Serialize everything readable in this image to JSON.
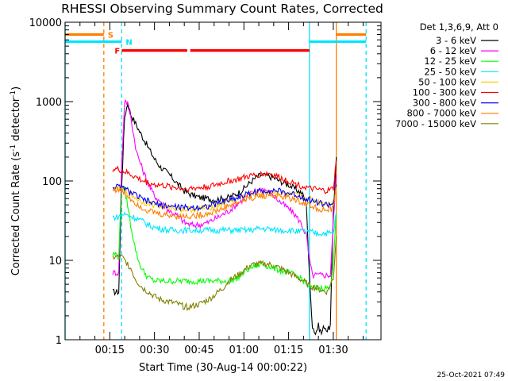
{
  "chart_data": {
    "type": "line",
    "title": "RHESSI Observing Summary Count Rates, Corrected",
    "xlabel": "Start Time (30-Aug-14 00:00:22)",
    "ylabel_main": "Corrected Count Rate (s",
    "ylabel_sup1": "-1",
    "ylabel_mid": " detector",
    "ylabel_sup2": "-1",
    "ylabel_end": ")",
    "timestamp": "25-Oct-2021 07:49",
    "legend_title": "Det 1,3,6,9, Att 0",
    "legend_position": "right",
    "y_scale": "log",
    "ylim": [
      1,
      10000
    ],
    "xlim_minutes": [
      0,
      106
    ],
    "yticks": [
      {
        "value": 1,
        "label": "1"
      },
      {
        "value": 10,
        "label": "10"
      },
      {
        "value": 100,
        "label": "100"
      },
      {
        "value": 1000,
        "label": "1000"
      },
      {
        "value": 10000,
        "label": "10000"
      }
    ],
    "xticks": [
      {
        "value": 15,
        "label": "00:15"
      },
      {
        "value": 30,
        "label": "00:30"
      },
      {
        "value": 45,
        "label": "00:45"
      },
      {
        "value": 60,
        "label": "01:00"
      },
      {
        "value": 75,
        "label": "01:15"
      },
      {
        "value": 90,
        "label": "01:30"
      }
    ],
    "flags": [
      {
        "label": "S",
        "color": "#ff7f00",
        "y": 7000,
        "segments": [
          [
            0,
            13
          ],
          [
            91,
            101
          ]
        ]
      },
      {
        "label": "N",
        "color": "#00e5ff",
        "y": 5700,
        "segments": [
          [
            0,
            19
          ],
          [
            82,
            101
          ]
        ]
      },
      {
        "label": "F",
        "color": "#ff0000",
        "y": 4400,
        "segments": [
          [
            19,
            41
          ],
          [
            42,
            82
          ]
        ]
      }
    ],
    "vlines": [
      {
        "x": 0,
        "color": "#00e5ff",
        "style": "solid"
      },
      {
        "x": 13,
        "color": "#ff7f00",
        "style": "dashed"
      },
      {
        "x": 19,
        "color": "#00e5ff",
        "style": "dashed"
      },
      {
        "x": 82,
        "color": "#00e5ff",
        "style": "solid"
      },
      {
        "x": 91,
        "color": "#ff7f00",
        "style": "solid"
      },
      {
        "x": 101,
        "color": "#00e5ff",
        "style": "dashed"
      }
    ],
    "series": [
      {
        "name": "3 - 6 keV",
        "color": "#000000",
        "x": [
          16,
          17,
          18,
          19,
          20,
          21,
          22,
          25,
          28,
          30,
          32,
          35,
          38,
          40,
          42,
          45,
          48,
          50,
          53,
          55,
          58,
          60,
          62,
          64,
          66,
          68,
          70,
          72,
          75,
          77,
          79,
          80,
          81,
          82,
          83,
          84,
          85,
          86,
          87,
          88,
          89,
          90,
          91
        ],
        "y": [
          4,
          4,
          4,
          90,
          650,
          950,
          700,
          420,
          260,
          190,
          150,
          120,
          90,
          75,
          68,
          62,
          60,
          58,
          60,
          62,
          70,
          80,
          95,
          110,
          120,
          115,
          110,
          100,
          90,
          80,
          72,
          65,
          50,
          6,
          1.5,
          1.2,
          1.5,
          1.2,
          1.5,
          1.3,
          1.5,
          40,
          200
        ]
      },
      {
        "name": "6 - 12 keV",
        "color": "#ff00ff",
        "x": [
          16,
          17,
          18,
          19,
          20,
          21,
          22,
          23,
          24,
          26,
          28,
          30,
          32,
          35,
          38,
          40,
          42,
          45,
          48,
          50,
          53,
          55,
          58,
          60,
          62,
          64,
          66,
          68,
          70,
          72,
          75,
          77,
          79,
          80,
          81,
          82,
          83,
          84,
          86,
          88,
          89,
          90,
          91
        ],
        "y": [
          7,
          7,
          7,
          160,
          1050,
          950,
          650,
          380,
          230,
          140,
          90,
          65,
          55,
          42,
          36,
          30,
          28,
          28,
          30,
          33,
          38,
          42,
          52,
          60,
          68,
          75,
          80,
          75,
          65,
          55,
          45,
          38,
          30,
          25,
          20,
          10,
          6.5,
          6.5,
          6.5,
          6.5,
          6.5,
          30,
          120
        ]
      },
      {
        "name": "12 - 25 keV",
        "color": "#00ff00",
        "x": [
          16,
          17,
          18,
          19,
          20,
          21,
          22,
          23,
          24,
          25,
          26,
          28,
          30,
          32,
          35,
          38,
          40,
          42,
          45,
          48,
          50,
          53,
          55,
          58,
          60,
          62,
          64,
          66,
          68,
          70,
          72,
          75,
          77,
          79,
          80,
          81,
          82,
          83,
          84,
          86,
          88,
          89,
          90,
          91
        ],
        "y": [
          12,
          12,
          11,
          90,
          75,
          50,
          28,
          18,
          12,
          9,
          7.5,
          6,
          5.5,
          5.5,
          5.5,
          5.5,
          5.5,
          5.5,
          5.5,
          5.5,
          5.5,
          5.5,
          5.5,
          6,
          7,
          8,
          8.5,
          9,
          8.5,
          8,
          7.5,
          7,
          6.5,
          6,
          5.5,
          5,
          4.5,
          4.5,
          4.5,
          4.5,
          4.5,
          4.5,
          10,
          40
        ]
      },
      {
        "name": "25 - 50 keV",
        "color": "#00e5ff",
        "x": [
          16,
          18,
          19,
          20,
          22,
          24,
          26,
          28,
          30,
          32,
          35,
          38,
          40,
          42,
          45,
          48,
          50,
          53,
          55,
          58,
          60,
          62,
          65,
          68,
          70,
          72,
          75,
          78,
          80,
          82,
          84,
          86,
          88,
          90,
          91
        ],
        "y": [
          35,
          35,
          38,
          38,
          36,
          34,
          31,
          28,
          26,
          25,
          24,
          24,
          24,
          24,
          24,
          24,
          24,
          24,
          24,
          24,
          24,
          24,
          25,
          25,
          24,
          24,
          24,
          23,
          23,
          23,
          22,
          22,
          22,
          22,
          40
        ]
      },
      {
        "name": "50 - 100 keV",
        "color": "#ffcc00",
        "x": [
          16,
          18,
          20,
          22,
          24,
          26,
          28,
          30,
          32,
          35,
          38,
          40,
          42,
          45,
          48,
          50,
          53,
          55,
          58,
          60,
          62,
          65,
          68,
          70,
          72,
          75,
          78,
          80,
          82,
          84,
          86,
          88,
          90,
          91
        ],
        "y": [
          78,
          80,
          75,
          68,
          60,
          55,
          52,
          50,
          48,
          46,
          45,
          44,
          44,
          45,
          46,
          48,
          52,
          56,
          60,
          64,
          68,
          70,
          72,
          72,
          70,
          68,
          65,
          62,
          60,
          56,
          54,
          52,
          55,
          80
        ]
      },
      {
        "name": "100 - 300 keV",
        "color": "#ff0000",
        "x": [
          16,
          18,
          20,
          22,
          24,
          26,
          28,
          30,
          32,
          35,
          38,
          40,
          42,
          45,
          48,
          50,
          53,
          55,
          58,
          60,
          62,
          65,
          68,
          70,
          72,
          75,
          78,
          80,
          82,
          84,
          86,
          88,
          90,
          91
        ],
        "y": [
          140,
          140,
          130,
          120,
          110,
          100,
          95,
          90,
          88,
          85,
          82,
          80,
          80,
          82,
          85,
          88,
          95,
          100,
          105,
          110,
          115,
          120,
          125,
          120,
          110,
          100,
          90,
          85,
          80,
          78,
          76,
          75,
          80,
          180
        ]
      },
      {
        "name": "300 - 800 keV",
        "color": "#0000ff",
        "x": [
          16,
          18,
          20,
          22,
          24,
          26,
          28,
          30,
          32,
          35,
          38,
          40,
          42,
          45,
          48,
          50,
          53,
          55,
          58,
          60,
          62,
          65,
          68,
          70,
          72,
          75,
          78,
          80,
          82,
          84,
          86,
          88,
          90,
          91
        ],
        "y": [
          84,
          84,
          80,
          72,
          65,
          58,
          55,
          52,
          50,
          48,
          47,
          46,
          46,
          47,
          48,
          50,
          55,
          58,
          62,
          66,
          70,
          74,
          76,
          76,
          74,
          70,
          66,
          62,
          58,
          55,
          52,
          50,
          52,
          90
        ]
      },
      {
        "name": "800 - 7000 keV",
        "color": "#ff7f00",
        "x": [
          16,
          18,
          20,
          22,
          24,
          26,
          28,
          30,
          32,
          35,
          38,
          40,
          42,
          45,
          48,
          50,
          53,
          55,
          58,
          60,
          62,
          65,
          68,
          70,
          72,
          75,
          78,
          80,
          82,
          84,
          86,
          88,
          90,
          91
        ],
        "y": [
          78,
          78,
          70,
          60,
          52,
          46,
          42,
          40,
          38,
          37,
          36,
          36,
          36,
          37,
          39,
          41,
          45,
          49,
          53,
          57,
          61,
          64,
          66,
          66,
          64,
          61,
          57,
          53,
          50,
          46,
          44,
          42,
          45,
          85
        ]
      },
      {
        "name": "7000 - 15000 keV",
        "color": "#808000",
        "x": [
          16,
          17,
          18,
          19,
          20,
          21,
          22,
          23,
          24,
          26,
          28,
          30,
          32,
          35,
          38,
          40,
          42,
          45,
          48,
          50,
          53,
          55,
          58,
          60,
          62,
          64,
          66,
          68,
          70,
          72,
          75,
          78,
          80,
          82,
          84,
          86,
          88,
          90,
          91
        ],
        "y": [
          11,
          11,
          11,
          11,
          10,
          9,
          8,
          6.5,
          5.5,
          4.5,
          4,
          3.5,
          3.2,
          3,
          2.8,
          2.6,
          2.6,
          2.8,
          3.2,
          3.6,
          4.5,
          5.5,
          6.5,
          7.5,
          8.5,
          9,
          9,
          9,
          8.5,
          8,
          7,
          6,
          5.5,
          4.8,
          4.5,
          4.2,
          4,
          6,
          20
        ]
      }
    ]
  }
}
